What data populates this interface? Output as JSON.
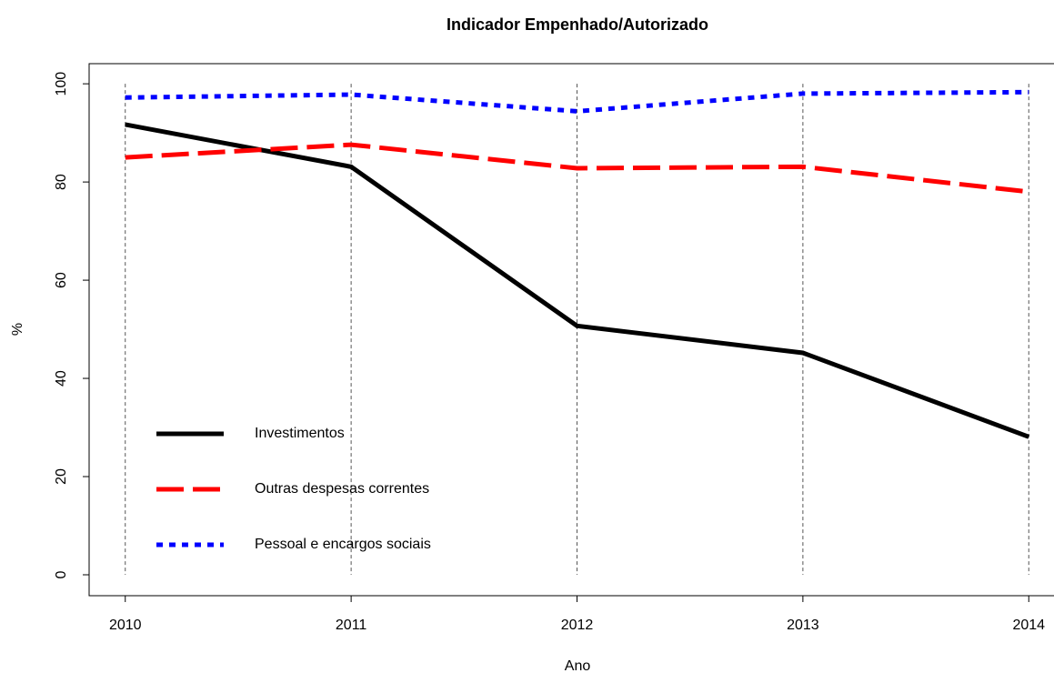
{
  "chart_data": {
    "type": "line",
    "title": "Indicador Empenhado/Autorizado",
    "xlabel": "Ano",
    "ylabel": "%",
    "x": [
      2010,
      2011,
      2012,
      2013,
      2014
    ],
    "series": [
      {
        "name": "Investimentos",
        "color": "#000000",
        "linestyle": "solid",
        "values": [
          91.7,
          83.1,
          50.7,
          45.2,
          28.1
        ]
      },
      {
        "name": "Outras despesas correntes",
        "color": "#ff0000",
        "linestyle": "longdash",
        "values": [
          85.0,
          87.6,
          82.8,
          83.1,
          78.0
        ]
      },
      {
        "name": "Pessoal e encargos sociais",
        "color": "#0000ff",
        "linestyle": "dotted",
        "values": [
          97.2,
          97.8,
          94.4,
          98.0,
          98.3
        ]
      }
    ],
    "xlim": [
      2009.84,
      2014.16
    ],
    "xticks": [
      2010,
      2011,
      2012,
      2013,
      2014
    ],
    "ylim": [
      -4.26,
      104.1
    ],
    "yticks": [
      0,
      20,
      40,
      60,
      80,
      100
    ],
    "grid": "x",
    "legend": "bottom-left"
  }
}
